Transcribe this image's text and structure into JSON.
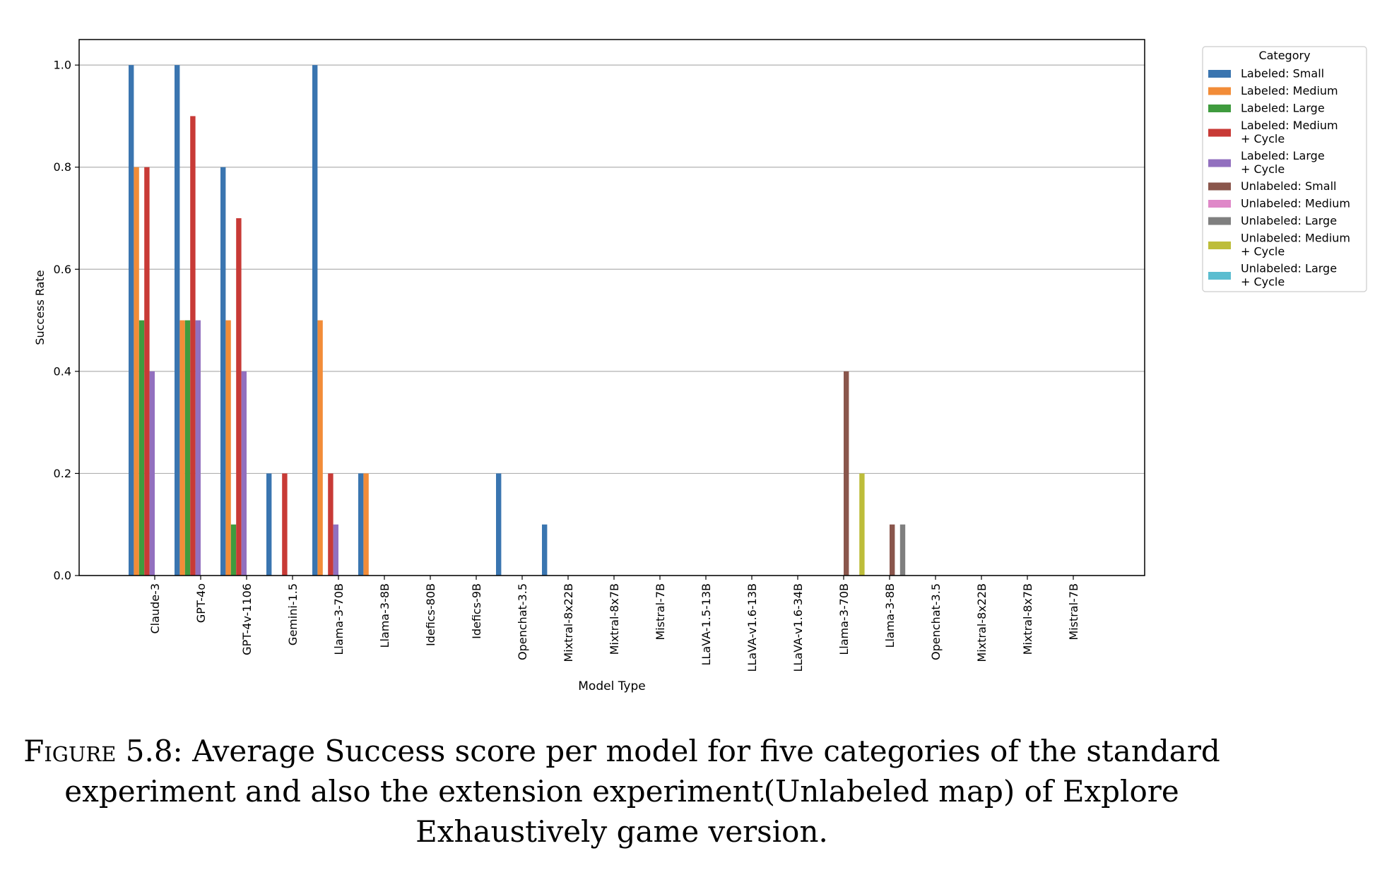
{
  "chart_data": {
    "type": "bar",
    "xlabel": "Model Type",
    "ylabel": "Success Rate",
    "ylim": [
      0,
      1.05
    ],
    "yticks": [
      "0.0",
      "0.2",
      "0.4",
      "0.6",
      "0.8",
      "1.0"
    ],
    "grid": "horizontal",
    "legend_title": "Category",
    "legend_placement": "outside upper right",
    "categories": [
      "Claude-3",
      "GPT-4o",
      "GPT-4v-1106",
      "Gemini-1.5",
      "Llama-3-70B",
      "Llama-3-8B",
      "Idefics-80B",
      "Idefics-9B",
      "Openchat-3.5",
      "Mixtral-8x22B",
      "Mixtral-8x7B",
      "Mistral-7B",
      "LLaVA-1.5-13B",
      "LLaVA-v1.6-13B",
      "LLaVA-v1.6-34B",
      "Llama-3-70B",
      "Llama-3-8B",
      "Openchat-3.5",
      "Mixtral-8x22B",
      "Mixtral-8x7B",
      "Mistral-7B"
    ],
    "series": [
      {
        "name": "Labeled:  Small",
        "color": "#3a75b0",
        "values": [
          1.0,
          1.0,
          0.8,
          0.2,
          1.0,
          0.2,
          0,
          0,
          0.2,
          0.1,
          0,
          0,
          0,
          0,
          0,
          0,
          0,
          0,
          0,
          0,
          0
        ]
      },
      {
        "name": "Labeled:  Medium",
        "color": "#f28c38",
        "values": [
          0.8,
          0.5,
          0.5,
          0,
          0.5,
          0.2,
          0,
          0,
          0,
          0,
          0,
          0,
          0,
          0,
          0,
          0,
          0,
          0,
          0,
          0,
          0
        ]
      },
      {
        "name": "Labeled:  Large",
        "color": "#3f9b3e",
        "values": [
          0.5,
          0.5,
          0.1,
          0,
          0,
          0,
          0,
          0,
          0,
          0,
          0,
          0,
          0,
          0,
          0,
          0,
          0,
          0,
          0,
          0,
          0
        ]
      },
      {
        "name": "Labeled:  Medium\n+ Cycle",
        "color": "#c83a36",
        "values": [
          0.8,
          0.9,
          0.7,
          0.2,
          0.2,
          0,
          0,
          0,
          0,
          0,
          0,
          0,
          0,
          0,
          0,
          0,
          0,
          0,
          0,
          0,
          0
        ]
      },
      {
        "name": "Labeled:  Large\n+ Cycle",
        "color": "#9270bf",
        "values": [
          0.4,
          0.5,
          0.4,
          0,
          0.1,
          0,
          0,
          0,
          0,
          0,
          0,
          0,
          0,
          0,
          0,
          0,
          0,
          0,
          0,
          0,
          0
        ]
      },
      {
        "name": "Unlabeled:  Small",
        "color": "#8a564c",
        "values": [
          0,
          0,
          0,
          0,
          0,
          0,
          0,
          0,
          0,
          0,
          0,
          0,
          0,
          0,
          0,
          0.4,
          0.1,
          0,
          0,
          0,
          0
        ]
      },
      {
        "name": "Unlabeled:  Medium",
        "color": "#df88c8",
        "values": [
          0,
          0,
          0,
          0,
          0,
          0,
          0,
          0,
          0,
          0,
          0,
          0,
          0,
          0,
          0,
          0,
          0,
          0,
          0,
          0,
          0
        ]
      },
      {
        "name": "Unlabeled:  Large",
        "color": "#7f7f7f",
        "values": [
          0,
          0,
          0,
          0,
          0,
          0,
          0,
          0,
          0,
          0,
          0,
          0,
          0,
          0,
          0,
          0,
          0.1,
          0,
          0,
          0,
          0
        ]
      },
      {
        "name": "Unlabeled:  Medium\n+ Cycle",
        "color": "#bdbd3a",
        "values": [
          0,
          0,
          0,
          0,
          0,
          0,
          0,
          0,
          0,
          0,
          0,
          0,
          0,
          0,
          0,
          0.2,
          0,
          0,
          0,
          0,
          0
        ]
      },
      {
        "name": "Unlabeled:  Large\n+ Cycle",
        "color": "#5bbdd0",
        "values": [
          0,
          0,
          0,
          0,
          0,
          0,
          0,
          0,
          0,
          0,
          0,
          0,
          0,
          0,
          0,
          0,
          0,
          0,
          0,
          0,
          0
        ]
      }
    ]
  },
  "caption": {
    "label": "Figure 5.8:",
    "text": "Average Success score per model for five categories of the standard experiment and also the extension experiment(Unlabeled map) of Explore Exhaustively game version."
  }
}
